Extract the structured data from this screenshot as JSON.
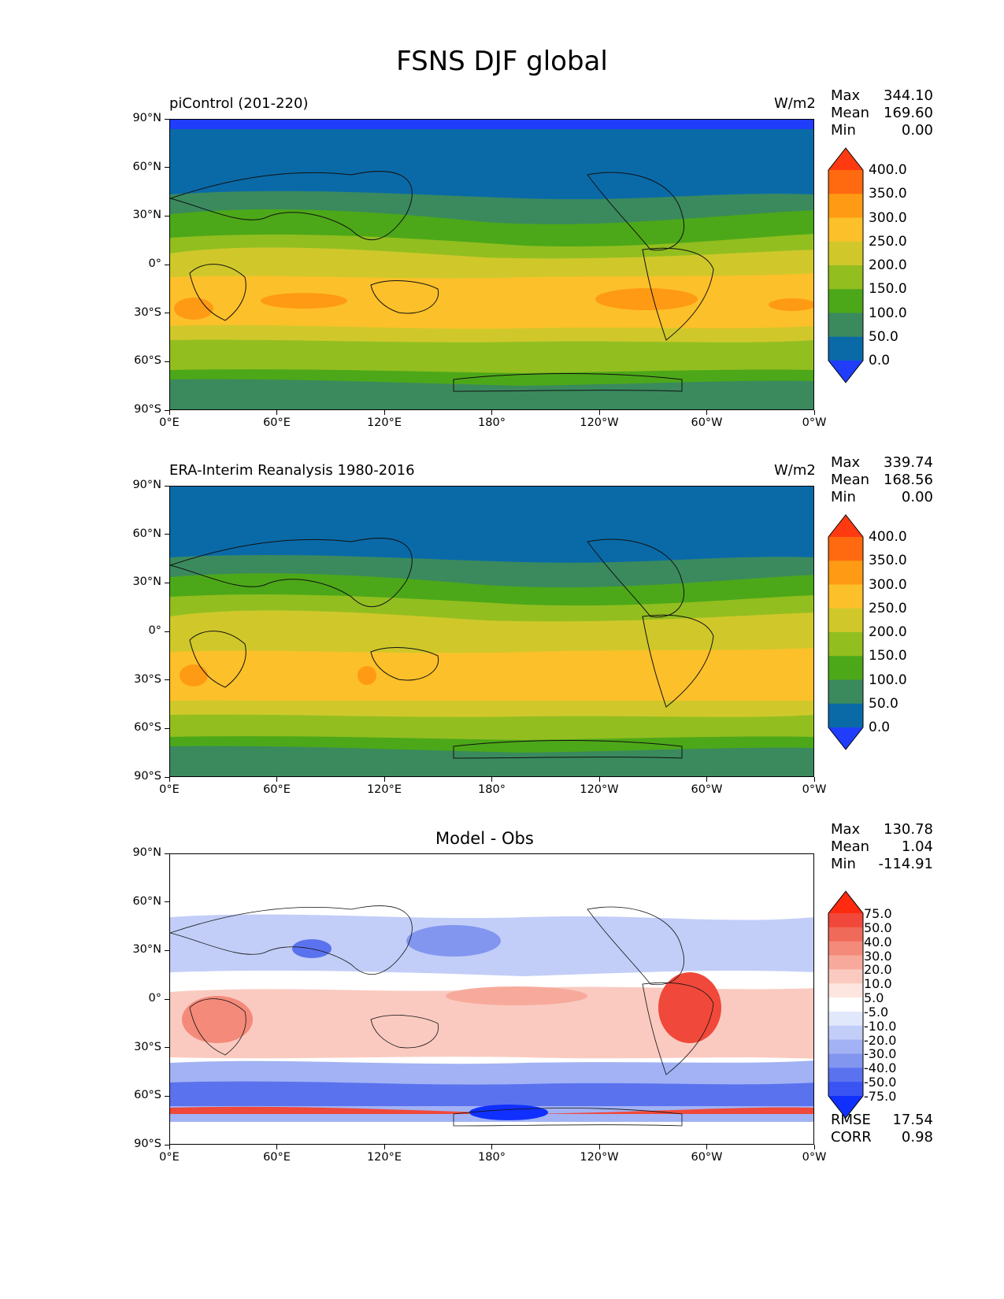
{
  "title": "FSNS DJF global",
  "x_ticks": [
    "0°E",
    "60°E",
    "120°E",
    "180°",
    "120°W",
    "60°W",
    "0°W"
  ],
  "y_ticks": [
    "90°N",
    "60°N",
    "30°N",
    "0°",
    "30°S",
    "60°S",
    "90°S"
  ],
  "panels": [
    {
      "name": "piControl (201-220)",
      "units": "W/m2",
      "stats": {
        "max_label": "Max",
        "max": "344.10",
        "mean_label": "Mean",
        "mean": "169.60",
        "min_label": "Min",
        "min": "0.00"
      },
      "colorbar": {
        "labels": [
          "400.0",
          "350.0",
          "300.0",
          "250.0",
          "200.0",
          "150.0",
          "100.0",
          "50.0",
          "0.0"
        ],
        "colors": [
          "#ff3a10",
          "#ff6a10",
          "#ff9a14",
          "#fcc02a",
          "#d0c82a",
          "#92be20",
          "#4ca818",
          "#3a8a5e",
          "#0a6aa8",
          "#1f3dfa"
        ]
      }
    },
    {
      "name": "ERA-Interim Reanalysis 1980-2016",
      "units": "W/m2",
      "stats": {
        "max_label": "Max",
        "max": "339.74",
        "mean_label": "Mean",
        "mean": "168.56",
        "min_label": "Min",
        "min": "0.00"
      },
      "colorbar": {
        "labels": [
          "400.0",
          "350.0",
          "300.0",
          "250.0",
          "200.0",
          "150.0",
          "100.0",
          "50.0",
          "0.0"
        ],
        "colors": [
          "#ff3a10",
          "#ff6a10",
          "#ff9a14",
          "#fcc02a",
          "#d0c82a",
          "#92be20",
          "#4ca818",
          "#3a8a5e",
          "#0a6aa8",
          "#1f3dfa"
        ]
      }
    },
    {
      "name": "Model - Obs",
      "units": "",
      "stats": {
        "max_label": "Max",
        "max": "130.78",
        "mean_label": "Mean",
        "mean": "1.04",
        "min_label": "Min",
        "min": "-114.91"
      },
      "colorbar": {
        "labels": [
          "75.0",
          "50.0",
          "40.0",
          "30.0",
          "20.0",
          "10.0",
          "5.0",
          "-5.0",
          "-10.0",
          "-20.0",
          "-30.0",
          "-40.0",
          "-50.0",
          "-75.0"
        ],
        "colors": [
          "#ff2a10",
          "#f0483a",
          "#f06a5a",
          "#f48a7a",
          "#f7aa9c",
          "#facac0",
          "#fde6e0",
          "#ffffff",
          "#e2e8fc",
          "#c2cef8",
          "#a2b2f4",
          "#8296f0",
          "#5a72ee",
          "#3a54f4",
          "#1030ff"
        ]
      },
      "metrics": {
        "rmse_label": "RMSE",
        "rmse": "17.54",
        "corr_label": "CORR",
        "corr": "0.98"
      }
    }
  ]
}
